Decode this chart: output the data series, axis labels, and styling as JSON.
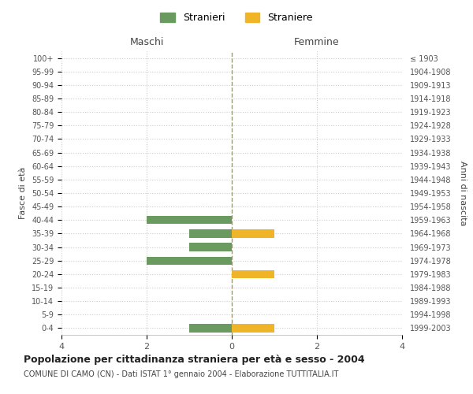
{
  "age_groups": [
    "0-4",
    "5-9",
    "10-14",
    "15-19",
    "20-24",
    "25-29",
    "30-34",
    "35-39",
    "40-44",
    "45-49",
    "50-54",
    "55-59",
    "60-64",
    "65-69",
    "70-74",
    "75-79",
    "80-84",
    "85-89",
    "90-94",
    "95-99",
    "100+"
  ],
  "birth_years": [
    "1999-2003",
    "1994-1998",
    "1989-1993",
    "1984-1988",
    "1979-1983",
    "1974-1978",
    "1969-1973",
    "1964-1968",
    "1959-1963",
    "1954-1958",
    "1949-1953",
    "1944-1948",
    "1939-1943",
    "1934-1938",
    "1929-1933",
    "1924-1928",
    "1919-1923",
    "1914-1918",
    "1909-1913",
    "1904-1908",
    "≤ 1903"
  ],
  "maschi_stranieri": [
    1,
    0,
    0,
    0,
    0,
    2,
    1,
    1,
    2,
    0,
    0,
    0,
    0,
    0,
    0,
    0,
    0,
    0,
    0,
    0,
    0
  ],
  "femmine_straniere": [
    1,
    0,
    0,
    0,
    1,
    0,
    0,
    1,
    0,
    0,
    0,
    0,
    0,
    0,
    0,
    0,
    0,
    0,
    0,
    0,
    0
  ],
  "color_maschi": "#6a9a5f",
  "color_femmine": "#f0b429",
  "title": "Popolazione per cittadinanza straniera per età e sesso - 2004",
  "subtitle": "COMUNE DI CAMO (CN) - Dati ISTAT 1° gennaio 2004 - Elaborazione TUTTITALIA.IT",
  "xlabel_left": "Maschi",
  "xlabel_right": "Femmine",
  "ylabel_left": "Fasce di età",
  "ylabel_right": "Anni di nascita",
  "legend_stranieri": "Stranieri",
  "legend_straniere": "Straniere",
  "xlim": 4,
  "background_color": "#ffffff",
  "grid_color": "#cccccc"
}
